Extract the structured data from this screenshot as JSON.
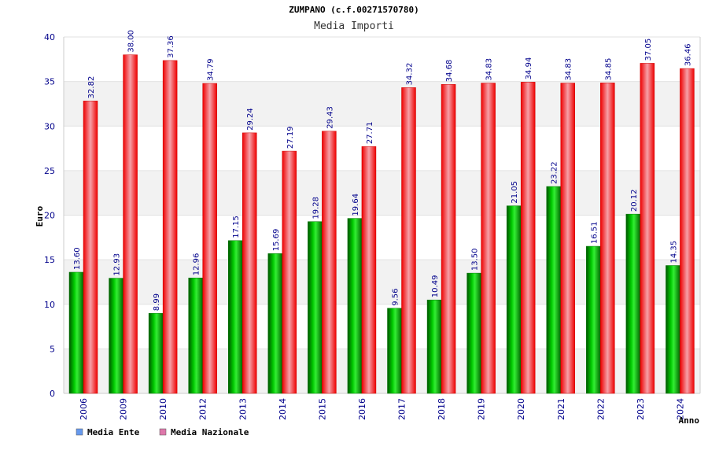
{
  "chart_data": {
    "type": "bar",
    "title": "ZUMPANO (c.f.00271570780)",
    "subtitle": "Media Importi",
    "ylabel": "Euro",
    "xlabel": "Anno",
    "ylim": [
      0,
      40
    ],
    "yticks": [
      "0",
      "5",
      "10",
      "15",
      "20",
      "25",
      "30",
      "35",
      "40"
    ],
    "categories": [
      "2006",
      "2009",
      "2010",
      "2012",
      "2013",
      "2014",
      "2015",
      "2016",
      "2017",
      "2018",
      "2019",
      "2020",
      "2021",
      "2022",
      "2023",
      "2024"
    ],
    "series": [
      {
        "name": "Media Ente",
        "color": "#00aa00",
        "values": [
          13.6,
          12.93,
          8.99,
          12.96,
          17.15,
          15.69,
          19.28,
          19.64,
          9.56,
          10.49,
          13.5,
          21.05,
          23.22,
          16.51,
          20.12,
          14.35
        ],
        "labels": [
          "13.60",
          "12.93",
          "8.99",
          "12.96",
          "17.15",
          "15.69",
          "19.28",
          "19.64",
          "9.56",
          "10.49",
          "13.50",
          "21.05",
          "23.22",
          "16.51",
          "20.12",
          "14.35"
        ]
      },
      {
        "name": "Media Nazionale",
        "color": "#ee1111",
        "values": [
          32.82,
          38.0,
          37.36,
          34.79,
          29.24,
          27.19,
          29.43,
          27.71,
          34.32,
          34.68,
          34.83,
          34.94,
          34.83,
          34.85,
          37.05,
          36.46
        ],
        "labels": [
          "32.82",
          "38.00",
          "37.36",
          "34.79",
          "29.24",
          "27.19",
          "29.43",
          "27.71",
          "34.32",
          "34.68",
          "34.83",
          "34.94",
          "34.83",
          "34.85",
          "37.05",
          "36.46"
        ]
      }
    ],
    "legend": [
      {
        "label": "Media Ente",
        "color": "#6699ee"
      },
      {
        "label": "Media Nazionale",
        "color": "#dd77aa"
      }
    ],
    "legend_position": "bottom-left",
    "grid": true
  }
}
